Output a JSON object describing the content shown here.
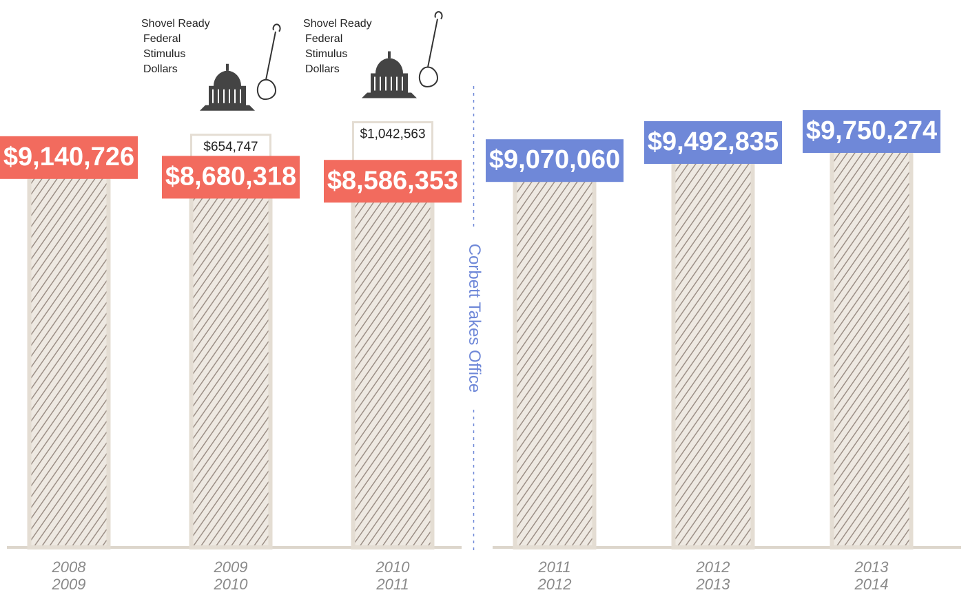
{
  "chart_data": {
    "type": "bar",
    "categories": [
      [
        "2008",
        "2009"
      ],
      [
        "2009",
        "2010"
      ],
      [
        "2010",
        "2011"
      ],
      [
        "2011",
        "2012"
      ],
      [
        "2012",
        "2013"
      ],
      [
        "2013",
        "2014"
      ]
    ],
    "series": [
      {
        "values": [
          9140726,
          8680318,
          8586353,
          9070060,
          9492835,
          9750274
        ],
        "value_labels": [
          "$9,140,726",
          "$8,680,318",
          "$8,586,353",
          "$9,070,060",
          "$9,492,835",
          "$9,750,274"
        ],
        "colors": [
          "#f26b5e",
          "#f26b5e",
          "#f26b5e",
          "#6f88d8",
          "#6f88d8",
          "#6f88d8"
        ]
      },
      {
        "name": "Shovel Ready Federal Stimulus Dollars",
        "values": [
          null,
          654747,
          1042563,
          null,
          null,
          null
        ],
        "value_labels": [
          null,
          "$654,747",
          "$1,042,563",
          null,
          null,
          null
        ],
        "color": "#ffffff"
      }
    ],
    "annotations": [
      {
        "text": "Corbett Takes Office",
        "after_category": 2
      }
    ]
  }
}
